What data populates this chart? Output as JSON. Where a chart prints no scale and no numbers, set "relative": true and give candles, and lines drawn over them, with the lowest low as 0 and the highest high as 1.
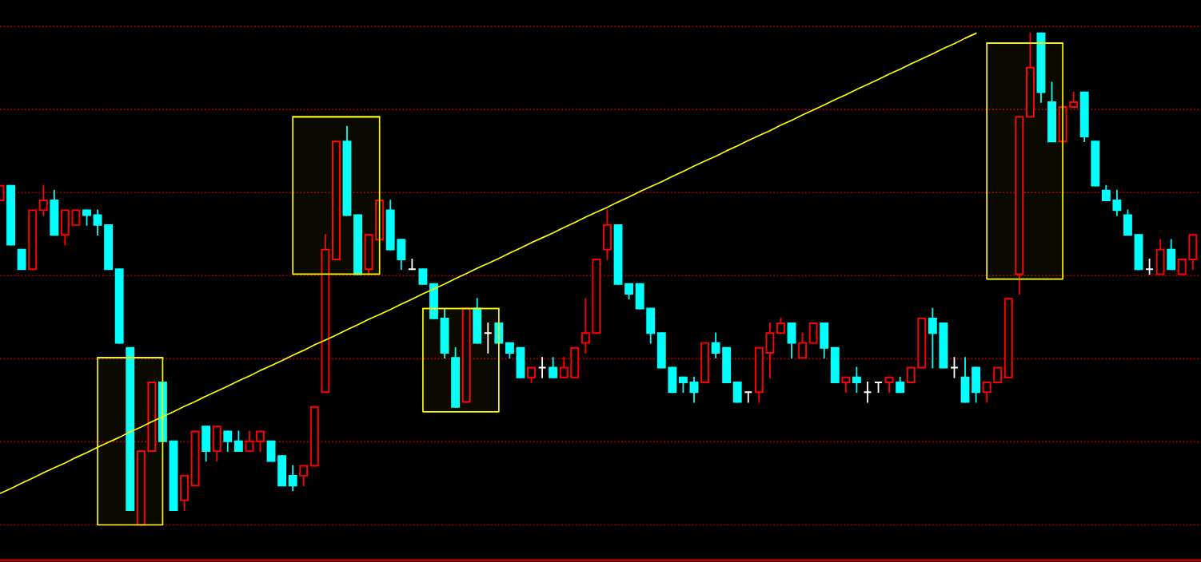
{
  "chart_data": {
    "type": "candlestick",
    "relative": true,
    "tick_labels": false,
    "categories": [
      null,
      null,
      null,
      null,
      null,
      null,
      null,
      null,
      null,
      null,
      null,
      null,
      null,
      null,
      null,
      null,
      null,
      null,
      null,
      null,
      null,
      null,
      null,
      null,
      null,
      null,
      null,
      null,
      null,
      null,
      null,
      null,
      null,
      null,
      null,
      null,
      null,
      null,
      null,
      null,
      null,
      null,
      null,
      null,
      null,
      null,
      null,
      null,
      null,
      null,
      null,
      null,
      null,
      null,
      null,
      null,
      null,
      null,
      null,
      null,
      null,
      null,
      null,
      null,
      null,
      null,
      null,
      null,
      null,
      null,
      null,
      null,
      null,
      null,
      null,
      null,
      null,
      null,
      null,
      null,
      null,
      null,
      null,
      null,
      null,
      null,
      null,
      null,
      null,
      null,
      null,
      null,
      null,
      null,
      null,
      null,
      null,
      null,
      null,
      null,
      null,
      null,
      null,
      null,
      null,
      null,
      null,
      null,
      null,
      null,
      null
    ],
    "ohlc": [
      [
        0.66,
        0.69,
        0.66,
        0.69
      ],
      [
        0.69,
        0.69,
        0.57,
        0.57
      ],
      [
        0.56,
        0.56,
        0.52,
        0.52
      ],
      [
        0.52,
        0.64,
        0.52,
        0.64
      ],
      [
        0.64,
        0.69,
        0.63,
        0.66
      ],
      [
        0.66,
        0.68,
        0.59,
        0.59
      ],
      [
        0.59,
        0.64,
        0.57,
        0.64
      ],
      [
        0.61,
        0.64,
        0.61,
        0.64
      ],
      [
        0.64,
        0.64,
        0.61,
        0.63
      ],
      [
        0.63,
        0.64,
        0.59,
        0.61
      ],
      [
        0.61,
        0.61,
        0.52,
        0.52
      ],
      [
        0.52,
        0.52,
        0.37,
        0.37
      ],
      [
        0.36,
        0.36,
        0.03,
        0.03
      ],
      [
        0.0,
        0.15,
        0.0,
        0.15
      ],
      [
        0.15,
        0.29,
        0.15,
        0.29
      ],
      [
        0.29,
        0.29,
        0.17,
        0.17
      ],
      [
        0.17,
        0.17,
        0.03,
        0.03
      ],
      [
        0.05,
        0.1,
        0.03,
        0.1
      ],
      [
        0.08,
        0.19,
        0.08,
        0.19
      ],
      [
        0.2,
        0.2,
        0.13,
        0.15
      ],
      [
        0.15,
        0.2,
        0.13,
        0.2
      ],
      [
        0.19,
        0.19,
        0.15,
        0.17
      ],
      [
        0.17,
        0.19,
        0.15,
        0.15
      ],
      [
        0.15,
        0.19,
        0.15,
        0.17
      ],
      [
        0.17,
        0.19,
        0.15,
        0.19
      ],
      [
        0.17,
        0.17,
        0.13,
        0.13
      ],
      [
        0.14,
        0.14,
        0.08,
        0.08
      ],
      [
        0.1,
        0.12,
        0.07,
        0.08
      ],
      [
        0.1,
        0.12,
        0.08,
        0.12
      ],
      [
        0.12,
        0.24,
        0.12,
        0.24
      ],
      [
        0.27,
        0.59,
        0.27,
        0.56
      ],
      [
        0.54,
        0.78,
        0.54,
        0.78
      ],
      [
        0.78,
        0.81,
        0.63,
        0.63
      ],
      [
        0.63,
        0.63,
        0.51,
        0.51
      ],
      [
        0.52,
        0.59,
        0.51,
        0.59
      ],
      [
        0.58,
        0.66,
        0.58,
        0.66
      ],
      [
        0.64,
        0.66,
        0.56,
        0.56
      ],
      [
        0.58,
        0.58,
        0.52,
        0.54
      ],
      [
        0.52,
        0.54,
        0.52,
        0.52
      ],
      [
        0.52,
        0.52,
        0.49,
        0.49
      ],
      [
        0.49,
        0.49,
        0.42,
        0.42
      ],
      [
        0.42,
        0.44,
        0.34,
        0.35
      ],
      [
        0.34,
        0.36,
        0.24,
        0.24
      ],
      [
        0.25,
        0.44,
        0.25,
        0.44
      ],
      [
        0.44,
        0.46,
        0.37,
        0.37
      ],
      [
        0.39,
        0.41,
        0.35,
        0.39
      ],
      [
        0.41,
        0.41,
        0.37,
        0.37
      ],
      [
        0.37,
        0.37,
        0.34,
        0.35
      ],
      [
        0.36,
        0.36,
        0.3,
        0.3
      ],
      [
        0.3,
        0.32,
        0.29,
        0.32
      ],
      [
        0.32,
        0.34,
        0.3,
        0.32
      ],
      [
        0.32,
        0.34,
        0.3,
        0.3
      ],
      [
        0.3,
        0.34,
        0.3,
        0.32
      ],
      [
        0.3,
        0.36,
        0.3,
        0.36
      ],
      [
        0.37,
        0.46,
        0.35,
        0.39
      ],
      [
        0.39,
        0.54,
        0.39,
        0.54
      ],
      [
        0.56,
        0.64,
        0.54,
        0.61
      ],
      [
        0.61,
        0.61,
        0.49,
        0.49
      ],
      [
        0.49,
        0.49,
        0.46,
        0.47
      ],
      [
        0.49,
        0.49,
        0.44,
        0.44
      ],
      [
        0.44,
        0.44,
        0.37,
        0.39
      ],
      [
        0.39,
        0.39,
        0.32,
        0.32
      ],
      [
        0.32,
        0.32,
        0.27,
        0.27
      ],
      [
        0.3,
        0.3,
        0.27,
        0.29
      ],
      [
        0.29,
        0.3,
        0.25,
        0.27
      ],
      [
        0.29,
        0.37,
        0.29,
        0.37
      ],
      [
        0.37,
        0.39,
        0.34,
        0.35
      ],
      [
        0.36,
        0.36,
        0.29,
        0.29
      ],
      [
        0.29,
        0.29,
        0.25,
        0.25
      ],
      [
        0.27,
        0.27,
        0.25,
        0.27
      ],
      [
        0.27,
        0.36,
        0.25,
        0.36
      ],
      [
        0.35,
        0.41,
        0.3,
        0.39
      ],
      [
        0.39,
        0.42,
        0.39,
        0.41
      ],
      [
        0.41,
        0.41,
        0.34,
        0.37
      ],
      [
        0.34,
        0.39,
        0.34,
        0.37
      ],
      [
        0.37,
        0.41,
        0.37,
        0.41
      ],
      [
        0.41,
        0.41,
        0.34,
        0.36
      ],
      [
        0.36,
        0.36,
        0.29,
        0.29
      ],
      [
        0.29,
        0.3,
        0.27,
        0.3
      ],
      [
        0.3,
        0.32,
        0.27,
        0.29
      ],
      [
        0.27,
        0.29,
        0.25,
        0.27
      ],
      [
        0.29,
        0.29,
        0.27,
        0.29
      ],
      [
        0.29,
        0.3,
        0.27,
        0.3
      ],
      [
        0.29,
        0.3,
        0.27,
        0.27
      ],
      [
        0.29,
        0.32,
        0.29,
        0.32
      ],
      [
        0.32,
        0.42,
        0.32,
        0.42
      ],
      [
        0.42,
        0.44,
        0.32,
        0.39
      ],
      [
        0.41,
        0.41,
        0.32,
        0.32
      ],
      [
        0.32,
        0.34,
        0.3,
        0.32
      ],
      [
        0.3,
        0.34,
        0.25,
        0.25
      ],
      [
        0.32,
        0.32,
        0.25,
        0.27
      ],
      [
        0.27,
        0.29,
        0.25,
        0.29
      ],
      [
        0.29,
        0.32,
        0.29,
        0.32
      ],
      [
        0.3,
        0.46,
        0.3,
        0.46
      ],
      [
        0.51,
        0.83,
        0.47,
        0.83
      ],
      [
        0.83,
        1.0,
        0.83,
        0.93
      ],
      [
        1.0,
        1.0,
        0.86,
        0.88
      ],
      [
        0.86,
        0.9,
        0.78,
        0.78
      ],
      [
        0.78,
        0.85,
        0.78,
        0.85
      ],
      [
        0.85,
        0.88,
        0.85,
        0.86
      ],
      [
        0.88,
        0.88,
        0.78,
        0.79
      ],
      [
        0.78,
        0.78,
        0.69,
        0.69
      ],
      [
        0.68,
        0.69,
        0.66,
        0.66
      ],
      [
        0.66,
        0.68,
        0.63,
        0.64
      ],
      [
        0.63,
        0.64,
        0.59,
        0.59
      ],
      [
        0.59,
        0.59,
        0.52,
        0.52
      ],
      [
        0.52,
        0.54,
        0.51,
        0.52
      ],
      [
        0.51,
        0.58,
        0.51,
        0.56
      ],
      [
        0.56,
        0.58,
        0.52,
        0.52
      ],
      [
        0.51,
        0.54,
        0.51,
        0.54
      ],
      [
        0.54,
        0.59,
        0.52,
        0.59
      ]
    ],
    "colors": [
      "#ff0000",
      "#00ffff",
      "#00ffff",
      "#ff0000",
      "#ff0000",
      "#00ffff",
      "#ff0000",
      "#ff0000",
      "#00ffff",
      "#00ffff",
      "#00ffff",
      "#00ffff",
      "#00ffff",
      "#ff0000",
      "#ff0000",
      "#00ffff",
      "#00ffff",
      "#ff0000",
      "#ff0000",
      "#00ffff",
      "#ff0000",
      "#00ffff",
      "#00ffff",
      "#ff0000",
      "#ff0000",
      "#00ffff",
      "#00ffff",
      "#00ffff",
      "#ff0000",
      "#ff0000",
      "#ff0000",
      "#ff0000",
      "#00ffff",
      "#00ffff",
      "#ff0000",
      "#ff0000",
      "#00ffff",
      "#00ffff",
      "#ffffff",
      "#00ffff",
      "#00ffff",
      "#00ffff",
      "#00ffff",
      "#ff0000",
      "#00ffff",
      "#ffffff",
      "#00ffff",
      "#00ffff",
      "#00ffff",
      "#ff0000",
      "#ffffff",
      "#00ffff",
      "#ff0000",
      "#ff0000",
      "#ff0000",
      "#ff0000",
      "#ff0000",
      "#00ffff",
      "#00ffff",
      "#00ffff",
      "#00ffff",
      "#00ffff",
      "#00ffff",
      "#00ffff",
      "#00ffff",
      "#ff0000",
      "#00ffff",
      "#00ffff",
      "#00ffff",
      "#ffffff",
      "#ff0000",
      "#ff0000",
      "#ff0000",
      "#00ffff",
      "#ff0000",
      "#ff0000",
      "#00ffff",
      "#00ffff",
      "#ff0000",
      "#00ffff",
      "#ffffff",
      "#ffffff",
      "#ff0000",
      "#00ffff",
      "#ff0000",
      "#ff0000",
      "#00ffff",
      "#00ffff",
      "#ffffff",
      "#00ffff",
      "#00ffff",
      "#ff0000",
      "#ff0000",
      "#ff0000",
      "#ff0000",
      "#ff0000",
      "#00ffff",
      "#00ffff",
      "#ff0000",
      "#ff0000",
      "#00ffff",
      "#00ffff",
      "#00ffff",
      "#00ffff",
      "#00ffff",
      "#00ffff",
      "#ffffff",
      "#ff0000",
      "#00ffff",
      "#ff0000",
      "#ff0000"
    ],
    "series": [
      {
        "type": "line",
        "color": "#ffff00",
        "values": [
          0.064,
          0.074,
          0.085,
          0.095,
          0.106,
          0.116,
          0.126,
          0.137,
          0.147,
          0.158,
          0.168,
          0.178,
          0.189,
          0.199,
          0.21,
          0.22,
          0.23,
          0.241,
          0.251,
          0.262,
          0.272,
          0.282,
          0.293,
          0.303,
          0.314,
          0.324,
          0.334,
          0.345,
          0.355,
          0.366,
          0.376,
          0.386,
          0.397,
          0.407,
          0.418,
          0.428,
          0.438,
          0.449,
          0.459,
          0.47,
          0.48,
          0.49,
          0.501,
          0.511,
          0.522,
          0.532,
          0.542,
          0.553,
          0.563,
          0.574,
          0.584,
          0.594,
          0.605,
          0.615,
          0.626,
          0.636,
          0.646,
          0.657,
          0.667,
          0.678,
          0.688,
          0.698,
          0.709,
          0.719,
          0.73,
          0.74,
          0.75,
          0.761,
          0.771,
          0.782,
          0.792,
          0.802,
          0.813,
          0.823,
          0.834,
          0.844,
          0.854,
          0.865,
          0.875,
          0.886,
          0.896,
          0.906,
          0.917,
          0.927,
          0.938,
          0.948,
          0.958,
          0.969,
          0.979,
          0.99,
          1.0,
          null,
          null,
          null,
          null,
          null,
          null,
          null,
          null,
          null,
          null,
          null,
          null,
          null,
          null,
          null,
          null,
          null,
          null,
          null,
          null
        ]
      },
      {
        "type": "line",
        "color": "#ffff00",
        "values": [
          null,
          null,
          null,
          null,
          null,
          null,
          null,
          null,
          null,
          0.34,
          0.34,
          0.34,
          0.34,
          0.34,
          0.34,
          0.34,
          null,
          null,
          null,
          null,
          null,
          null,
          null,
          null,
          null,
          null,
          null,
          null,
          null,
          null,
          null,
          null,
          null,
          null,
          null,
          null,
          null,
          null,
          null,
          null,
          null,
          null,
          null,
          null,
          null,
          null,
          null,
          null,
          null,
          null,
          null,
          null,
          null,
          null,
          null,
          null,
          null,
          null,
          null,
          null,
          null,
          null,
          null,
          null,
          null,
          null,
          null,
          null,
          null,
          null,
          null,
          null,
          null,
          null,
          null,
          null,
          null,
          null,
          null,
          null,
          null,
          null,
          null,
          null,
          null,
          null,
          null,
          null,
          null,
          null,
          null,
          null,
          null,
          null,
          null,
          null,
          null,
          null,
          null,
          null,
          null,
          null,
          null,
          null,
          null,
          null,
          null,
          null,
          null,
          null,
          null
        ],
        "upper": [
          null,
          null,
          null,
          null,
          null,
          null,
          null,
          null,
          null,
          0.34,
          0.34,
          0.34,
          0.34,
          0.34,
          0.34,
          0.34,
          null,
          null,
          null,
          null,
          null,
          null,
          null,
          null,
          null,
          null,
          null,
          null,
          null,
          null,
          null,
          null,
          null,
          null,
          null,
          null,
          null,
          null,
          null,
          null,
          null,
          null,
          null,
          null,
          null,
          null,
          null,
          null,
          null,
          null,
          null,
          null,
          null,
          null,
          null,
          null,
          null,
          null,
          null,
          null,
          null,
          null,
          null,
          null,
          null,
          null,
          null,
          null,
          null,
          null,
          null,
          null,
          null,
          null,
          null,
          null,
          null,
          null,
          null,
          null,
          null,
          null,
          null,
          null,
          null,
          null,
          null,
          null,
          null,
          null,
          null,
          null,
          null,
          null,
          null,
          null,
          null,
          null,
          null,
          null,
          null,
          null,
          null,
          null,
          null,
          null,
          null,
          null,
          null,
          null,
          null
        ],
        "lower": [
          null,
          null,
          null,
          null,
          null,
          null,
          null,
          null,
          null,
          0.0,
          0.0,
          0.0,
          0.0,
          0.0,
          0.0,
          0.0,
          null,
          null,
          null,
          null,
          null,
          null,
          null,
          null,
          null,
          null,
          null,
          null,
          null,
          null,
          null,
          null,
          null,
          null,
          null,
          null,
          null,
          null,
          null,
          null,
          null,
          null,
          null,
          null,
          null,
          null,
          null,
          null,
          null,
          null,
          null,
          null,
          null,
          null,
          null,
          null,
          null,
          null,
          null,
          null,
          null,
          null,
          null,
          null,
          null,
          null,
          null,
          null,
          null,
          null,
          null,
          null,
          null,
          null,
          null,
          null,
          null,
          null,
          null,
          null,
          null,
          null,
          null,
          null,
          null,
          null,
          null,
          null,
          null,
          null,
          null,
          null,
          null,
          null,
          null,
          null,
          null,
          null,
          null,
          null,
          null,
          null,
          null,
          null,
          null,
          null,
          null,
          null,
          null,
          null,
          null
        ]
      },
      {
        "type": "line",
        "color": "#ffff00",
        "values": [
          null,
          null,
          null,
          null,
          null,
          null,
          null,
          null,
          null,
          null,
          null,
          null,
          null,
          null,
          null,
          null,
          null,
          null,
          null,
          null,
          null,
          null,
          null,
          null,
          null,
          null,
          null,
          0.83,
          0.83,
          0.83,
          0.83,
          0.83,
          0.83,
          0.83,
          0.83,
          0.83,
          null,
          null,
          null,
          null,
          null,
          null,
          null,
          null,
          null,
          null,
          null,
          null,
          null,
          null,
          null,
          null,
          null,
          null,
          null,
          null,
          null,
          null,
          null,
          null,
          null,
          null,
          null,
          null,
          null,
          null,
          null,
          null,
          null,
          null,
          null,
          null,
          null,
          null,
          null,
          null,
          null,
          null,
          null,
          null,
          null,
          null,
          null,
          null,
          null,
          null,
          null,
          null,
          null,
          null,
          null,
          null,
          null,
          null,
          null,
          null,
          null,
          null,
          null,
          null,
          null,
          null,
          null,
          null,
          null,
          null,
          null,
          null,
          null,
          null,
          null
        ],
        "upper": [
          null,
          null,
          null,
          null,
          null,
          null,
          null,
          null,
          null,
          null,
          null,
          null,
          null,
          null,
          null,
          null,
          null,
          null,
          null,
          null,
          null,
          null,
          null,
          null,
          null,
          null,
          null,
          0.83,
          0.83,
          0.83,
          0.83,
          0.83,
          0.83,
          0.83,
          0.83,
          0.83,
          null,
          null,
          null,
          null,
          null,
          null,
          null,
          null,
          null,
          null,
          null,
          null,
          null,
          null,
          null,
          null,
          null,
          null,
          null,
          null,
          null,
          null,
          null,
          null,
          null,
          null,
          null,
          null,
          null,
          null,
          null,
          null,
          null,
          null,
          null,
          null,
          null,
          null,
          null,
          null,
          null,
          null,
          null,
          null,
          null,
          null,
          null,
          null,
          null,
          null,
          null,
          null,
          null,
          null,
          null,
          null,
          null,
          null,
          null,
          null,
          null,
          null,
          null,
          null,
          null,
          null,
          null,
          null,
          null,
          null,
          null,
          null,
          null,
          null,
          null
        ],
        "lower": [
          null,
          null,
          null,
          null,
          null,
          null,
          null,
          null,
          null,
          null,
          null,
          null,
          null,
          null,
          null,
          null,
          null,
          null,
          null,
          null,
          null,
          null,
          null,
          null,
          null,
          null,
          null,
          0.51,
          0.51,
          0.51,
          0.51,
          0.51,
          0.51,
          0.51,
          0.51,
          0.51,
          null,
          null,
          null,
          null,
          null,
          null,
          null,
          null,
          null,
          null,
          null,
          null,
          null,
          null,
          null,
          null,
          null,
          null,
          null,
          null,
          null,
          null,
          null,
          null,
          null,
          null,
          null,
          null,
          null,
          null,
          null,
          null,
          null,
          null,
          null,
          null,
          null,
          null,
          null,
          null,
          null,
          null,
          null,
          null,
          null,
          null,
          null,
          null,
          null,
          null,
          null,
          null,
          null,
          null,
          null,
          null,
          null,
          null,
          null,
          null,
          null,
          null,
          null,
          null,
          null,
          null,
          null,
          null,
          null,
          null,
          null,
          null,
          null,
          null,
          null
        ]
      },
      {
        "type": "line",
        "color": "#ffff00",
        "values": [
          null,
          null,
          null,
          null,
          null,
          null,
          null,
          null,
          null,
          null,
          null,
          null,
          null,
          null,
          null,
          null,
          null,
          null,
          null,
          null,
          null,
          null,
          null,
          null,
          null,
          null,
          null,
          null,
          null,
          null,
          null,
          null,
          null,
          null,
          null,
          null,
          null,
          null,
          null,
          0.44,
          0.44,
          0.44,
          0.44,
          0.44,
          0.44,
          0.44,
          0.44,
          null,
          null,
          null,
          null,
          null,
          null,
          null,
          null,
          null,
          null,
          null,
          null,
          null,
          null,
          null,
          null,
          null,
          null,
          null,
          null,
          null,
          null,
          null,
          null,
          null,
          null,
          null,
          null,
          null,
          null,
          null,
          null,
          null,
          null,
          null,
          null,
          null,
          null,
          null,
          null,
          null,
          null,
          null,
          null,
          null,
          null,
          null,
          null,
          null,
          null,
          null,
          null,
          null,
          null,
          null,
          null,
          null,
          null,
          null,
          null,
          null,
          null,
          null,
          null
        ],
        "upper": [
          null,
          null,
          null,
          null,
          null,
          null,
          null,
          null,
          null,
          null,
          null,
          null,
          null,
          null,
          null,
          null,
          null,
          null,
          null,
          null,
          null,
          null,
          null,
          null,
          null,
          null,
          null,
          null,
          null,
          null,
          null,
          null,
          null,
          null,
          null,
          null,
          null,
          null,
          null,
          0.44,
          0.44,
          0.44,
          0.44,
          0.44,
          0.44,
          0.44,
          0.44,
          null,
          null,
          null,
          null,
          null,
          null,
          null,
          null,
          null,
          null,
          null,
          null,
          null,
          null,
          null,
          null,
          null,
          null,
          null,
          null,
          null,
          null,
          null,
          null,
          null,
          null,
          null,
          null,
          null,
          null,
          null,
          null,
          null,
          null,
          null,
          null,
          null,
          null,
          null,
          null,
          null,
          null,
          null,
          null,
          null,
          null,
          null,
          null,
          null,
          null,
          null,
          null,
          null,
          null,
          null,
          null,
          null,
          null,
          null,
          null,
          null,
          null,
          null,
          null
        ],
        "lower": [
          null,
          null,
          null,
          null,
          null,
          null,
          null,
          null,
          null,
          null,
          null,
          null,
          null,
          null,
          null,
          null,
          null,
          null,
          null,
          null,
          null,
          null,
          null,
          null,
          null,
          null,
          null,
          null,
          null,
          null,
          null,
          null,
          null,
          null,
          null,
          null,
          null,
          null,
          null,
          0.23,
          0.23,
          0.23,
          0.23,
          0.23,
          0.23,
          0.23,
          0.23,
          null,
          null,
          null,
          null,
          null,
          null,
          null,
          null,
          null,
          null,
          null,
          null,
          null,
          null,
          null,
          null,
          null,
          null,
          null,
          null,
          null,
          null,
          null,
          null,
          null,
          null,
          null,
          null,
          null,
          null,
          null,
          null,
          null,
          null,
          null,
          null,
          null,
          null,
          null,
          null,
          null,
          null,
          null,
          null,
          null,
          null,
          null,
          null,
          null,
          null,
          null,
          null,
          null,
          null,
          null,
          null,
          null,
          null,
          null,
          null,
          null,
          null,
          null,
          null
        ]
      },
      {
        "type": "line",
        "color": "#ffff00",
        "values": [
          null,
          null,
          null,
          null,
          null,
          null,
          null,
          null,
          null,
          null,
          null,
          null,
          null,
          null,
          null,
          null,
          null,
          null,
          null,
          null,
          null,
          null,
          null,
          null,
          null,
          null,
          null,
          null,
          null,
          null,
          null,
          null,
          null,
          null,
          null,
          null,
          null,
          null,
          null,
          null,
          null,
          null,
          null,
          null,
          null,
          null,
          null,
          null,
          null,
          null,
          null,
          null,
          null,
          null,
          null,
          null,
          null,
          null,
          null,
          null,
          null,
          null,
          null,
          null,
          null,
          null,
          null,
          null,
          null,
          null,
          null,
          null,
          null,
          null,
          null,
          null,
          null,
          null,
          null,
          null,
          null,
          null,
          null,
          null,
          null,
          null,
          null,
          null,
          null,
          null,
          null,
          0.98,
          0.98,
          0.98,
          0.98,
          0.98,
          0.98,
          0.98,
          0.98,
          null,
          null,
          null,
          null,
          null,
          null,
          null,
          null,
          null,
          null,
          null,
          null
        ],
        "upper": [
          null,
          null,
          null,
          null,
          null,
          null,
          null,
          null,
          null,
          null,
          null,
          null,
          null,
          null,
          null,
          null,
          null,
          null,
          null,
          null,
          null,
          null,
          null,
          null,
          null,
          null,
          null,
          null,
          null,
          null,
          null,
          null,
          null,
          null,
          null,
          null,
          null,
          null,
          null,
          null,
          null,
          null,
          null,
          null,
          null,
          null,
          null,
          null,
          null,
          null,
          null,
          null,
          null,
          null,
          null,
          null,
          null,
          null,
          null,
          null,
          null,
          null,
          null,
          null,
          null,
          null,
          null,
          null,
          null,
          null,
          null,
          null,
          null,
          null,
          null,
          null,
          null,
          null,
          null,
          null,
          null,
          null,
          null,
          null,
          null,
          null,
          null,
          null,
          null,
          null,
          null,
          0.98,
          0.98,
          0.98,
          0.98,
          0.98,
          0.98,
          0.98,
          0.98,
          null,
          null,
          null,
          null,
          null,
          null,
          null,
          null,
          null,
          null,
          null,
          null
        ],
        "lower": [
          null,
          null,
          null,
          null,
          null,
          null,
          null,
          null,
          null,
          null,
          null,
          null,
          null,
          null,
          null,
          null,
          null,
          null,
          null,
          null,
          null,
          null,
          null,
          null,
          null,
          null,
          null,
          null,
          null,
          null,
          null,
          null,
          null,
          null,
          null,
          null,
          null,
          null,
          null,
          null,
          null,
          null,
          null,
          null,
          null,
          null,
          null,
          null,
          null,
          null,
          null,
          null,
          null,
          null,
          null,
          null,
          null,
          null,
          null,
          null,
          null,
          null,
          null,
          null,
          null,
          null,
          null,
          null,
          null,
          null,
          null,
          null,
          null,
          null,
          null,
          null,
          null,
          null,
          null,
          null,
          null,
          null,
          null,
          null,
          null,
          null,
          null,
          null,
          null,
          null,
          null,
          0.5,
          0.5,
          0.5,
          0.5,
          0.5,
          0.5,
          0.5,
          0.5,
          null,
          null,
          null,
          null,
          null,
          null,
          null,
          null,
          null,
          null,
          null,
          null
        ]
      }
    ],
    "ref_lines": [
      {
        "axis": "y",
        "value": 1.014,
        "color": "#c00000",
        "line_style": "dotted"
      },
      {
        "axis": "y",
        "value": 0.845,
        "color": "#c00000",
        "line_style": "dotted"
      },
      {
        "axis": "y",
        "value": 0.676,
        "color": "#c00000",
        "line_style": "dotted"
      },
      {
        "axis": "y",
        "value": 0.507,
        "color": "#c00000",
        "line_style": "dotted"
      },
      {
        "axis": "y",
        "value": 0.338,
        "color": "#c00000",
        "line_style": "dotted"
      },
      {
        "axis": "y",
        "value": 0.169,
        "color": "#c00000",
        "line_style": "dotted"
      },
      {
        "axis": "y",
        "value": 0.0,
        "color": "#c00000",
        "line_style": "dotted"
      }
    ]
  }
}
